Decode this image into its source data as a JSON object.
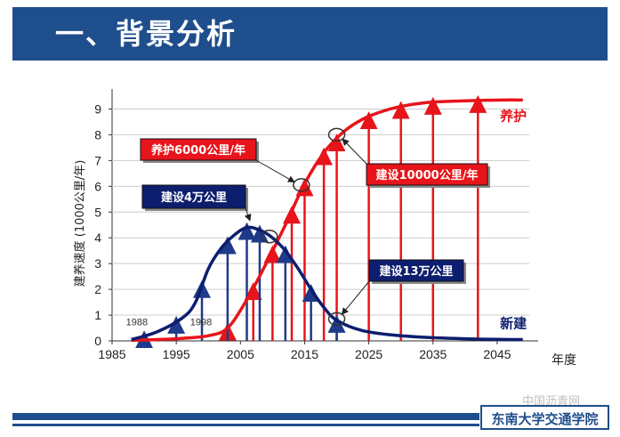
{
  "slide": {
    "title": "一、背景分析",
    "footer_school": "东南大学交通学院",
    "watermark": "中国沥青网"
  },
  "colors": {
    "header_bg": "#1f4e8c",
    "maintenance": "#e8141b",
    "construction": "#0d1e6e",
    "arrow_blue": "#1f3a8a"
  },
  "chart_data": {
    "type": "line",
    "xlabel": "年度",
    "ylabel": "建养速度 (1000公里/年)",
    "xlim": [
      1985,
      2050
    ],
    "ylim": [
      0,
      9.5
    ],
    "x_ticks": [
      1985,
      1995,
      2005,
      2015,
      2025,
      2035,
      2045
    ],
    "y_ticks": [
      0,
      1,
      2,
      3,
      4,
      5,
      6,
      7,
      8,
      9
    ],
    "series": [
      {
        "name": "养护",
        "x": [
          1988,
          1992,
          1996,
          2000,
          2003,
          2006,
          2009,
          2012,
          2015,
          2018,
          2021,
          2024,
          2027,
          2030,
          2034,
          2038,
          2042,
          2046,
          2049
        ],
        "y": [
          0.02,
          0.05,
          0.1,
          0.2,
          0.5,
          1.6,
          3.0,
          4.5,
          6.1,
          7.3,
          8.1,
          8.6,
          8.9,
          9.1,
          9.25,
          9.3,
          9.33,
          9.35,
          9.35
        ]
      },
      {
        "name": "新建",
        "x": [
          1988,
          1992,
          1996,
          1998,
          2000,
          2002,
          2004,
          2006,
          2008,
          2010,
          2012,
          2014,
          2016,
          2018,
          2020,
          2024,
          2030,
          2040,
          2049
        ],
        "y": [
          0.05,
          0.35,
          0.9,
          1.5,
          2.8,
          3.6,
          4.1,
          4.4,
          4.3,
          4.0,
          3.5,
          2.8,
          2.0,
          1.3,
          0.8,
          0.4,
          0.2,
          0.08,
          0.05
        ]
      }
    ],
    "maintenance_arrows": [
      2003,
      2007,
      2010,
      2013,
      2015,
      2018,
      2020,
      2025,
      2030,
      2035,
      2042
    ],
    "construction_arrows": [
      1990,
      1995,
      1999,
      2003,
      2006,
      2008,
      2012,
      2016,
      2020
    ],
    "marker_labels": [
      "1988",
      "1998"
    ],
    "circled_points": [
      {
        "x": 2009.5,
        "y": 4.05
      },
      {
        "x": 2014.5,
        "y": 6.05
      },
      {
        "x": 2020,
        "y": 8.0
      },
      {
        "x": 2020,
        "y": 0.85
      }
    ],
    "annotations": [
      {
        "id": "maint-6000",
        "text": "养护6000公里/年",
        "style": "red"
      },
      {
        "id": "build-4wan",
        "text": "建设4万公里",
        "style": "blue"
      },
      {
        "id": "build-10000",
        "text": "建设10000公里/年",
        "style": "red"
      },
      {
        "id": "build-13wan",
        "text": "建设13万公里",
        "style": "blue"
      }
    ],
    "series_labels": {
      "maintenance": "养护",
      "construction": "新建"
    }
  }
}
